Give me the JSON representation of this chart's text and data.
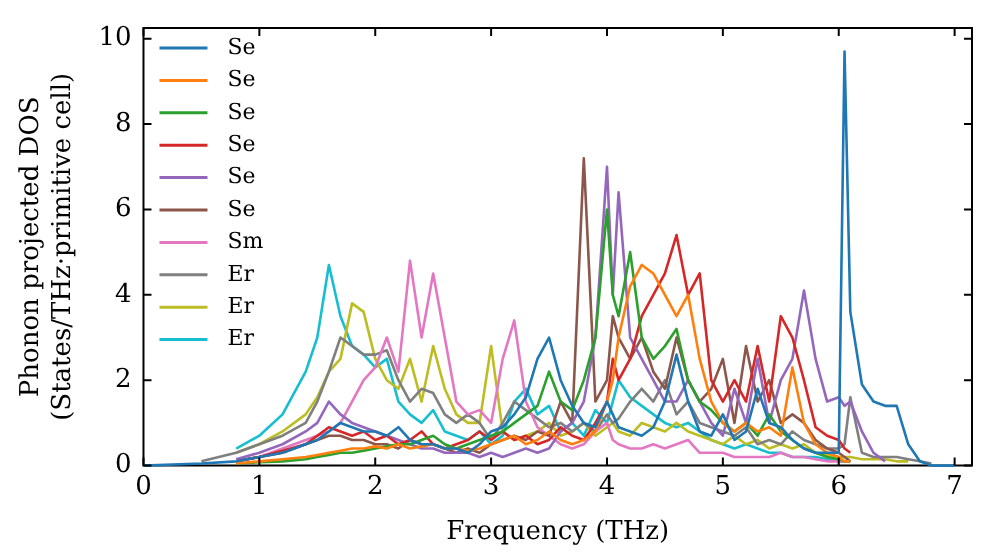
{
  "chart_data": {
    "type": "line",
    "xlabel": "Frequency (THz)",
    "ylabel": "Phonon projected DOS\n(States/THz·primitive cell)",
    "x": [
      0,
      0.5,
      0.8,
      1.0,
      1.2,
      1.4,
      1.5,
      1.6,
      1.7,
      1.8,
      1.9,
      2.0,
      2.1,
      2.2,
      2.3,
      2.4,
      2.5,
      2.6,
      2.7,
      2.8,
      2.9,
      3.0,
      3.1,
      3.2,
      3.3,
      3.4,
      3.5,
      3.6,
      3.7,
      3.8,
      3.9,
      4.0,
      4.05,
      4.1,
      4.2,
      4.3,
      4.4,
      4.5,
      4.6,
      4.7,
      4.8,
      4.9,
      5.0,
      5.1,
      5.2,
      5.3,
      5.4,
      5.5,
      5.6,
      5.7,
      5.8,
      5.9,
      6.0,
      6.05,
      6.1,
      6.2,
      6.3,
      6.4,
      6.5,
      6.6,
      6.7,
      6.8,
      7.0
    ],
    "xlim": [
      0,
      7.15
    ],
    "xticks": [
      0,
      1,
      2,
      3,
      4,
      5,
      6,
      7
    ],
    "ylim": [
      0,
      10.25
    ],
    "yticks": [
      0,
      2,
      4,
      6,
      8,
      10
    ],
    "legend": "top left",
    "grid": false,
    "marker": "none",
    "line_style": "solid",
    "series": [
      {
        "name": "Se",
        "color": "#1f77b4",
        "values": [
          0,
          0.05,
          0.1,
          0.2,
          0.3,
          0.5,
          0.6,
          0.8,
          1.0,
          0.9,
          0.8,
          0.8,
          0.7,
          0.9,
          0.6,
          0.5,
          0.5,
          0.4,
          0.4,
          0.3,
          0.5,
          0.8,
          0.9,
          1.2,
          1.6,
          2.5,
          3.0,
          2.0,
          1.4,
          1.0,
          0.9,
          1.5,
          1.2,
          0.9,
          0.8,
          0.7,
          0.9,
          1.5,
          2.6,
          1.5,
          0.8,
          0.7,
          1.2,
          0.6,
          0.8,
          1.8,
          1.0,
          0.9,
          0.6,
          0.4,
          0.3,
          0.3,
          0.3,
          9.7,
          3.6,
          1.9,
          1.5,
          1.4,
          1.4,
          0.5,
          0.1,
          0,
          0
        ]
      },
      {
        "name": "Se",
        "color": "#ff7f0e",
        "values": [
          null,
          null,
          0.05,
          0.1,
          0.15,
          0.2,
          0.25,
          0.3,
          0.35,
          0.4,
          0.4,
          0.45,
          0.4,
          0.5,
          0.4,
          0.45,
          0.5,
          0.4,
          0.4,
          0.35,
          0.4,
          0.5,
          0.6,
          0.7,
          0.5,
          0.6,
          0.8,
          0.6,
          0.5,
          0.6,
          0.8,
          1.5,
          2.0,
          3.0,
          4.2,
          4.7,
          4.5,
          4.0,
          3.5,
          4.0,
          2.5,
          1.5,
          1.0,
          0.8,
          1.0,
          0.8,
          0.9,
          0.7,
          2.3,
          1.0,
          0.5,
          0.3,
          0.2,
          0.1,
          0.1,
          null,
          null,
          null,
          null,
          null,
          null,
          null,
          null
        ]
      },
      {
        "name": "Se",
        "color": "#2ca02c",
        "values": [
          null,
          null,
          0.05,
          0.08,
          0.1,
          0.15,
          0.2,
          0.25,
          0.3,
          0.3,
          0.35,
          0.4,
          0.45,
          0.5,
          0.5,
          0.6,
          0.7,
          0.5,
          0.4,
          0.5,
          0.6,
          0.7,
          0.8,
          1.0,
          1.2,
          1.4,
          2.2,
          1.5,
          1.3,
          2.0,
          3.0,
          6.0,
          4.0,
          3.5,
          5.0,
          3.0,
          2.5,
          2.8,
          3.2,
          2.0,
          1.5,
          1.3,
          1.0,
          0.8,
          1.0,
          0.7,
          1.2,
          0.8,
          0.6,
          0.4,
          0.3,
          0.2,
          0.15,
          0.1,
          0.1,
          null,
          null,
          null,
          null,
          null,
          null,
          null,
          null
        ]
      },
      {
        "name": "Se",
        "color": "#d62728",
        "values": [
          null,
          null,
          0.1,
          0.2,
          0.35,
          0.5,
          0.7,
          0.9,
          0.8,
          0.7,
          0.8,
          0.6,
          0.7,
          0.5,
          0.6,
          0.8,
          0.5,
          0.4,
          0.5,
          0.6,
          0.8,
          0.6,
          0.8,
          0.6,
          0.7,
          0.5,
          0.6,
          0.9,
          0.7,
          0.6,
          1.0,
          1.5,
          2.5,
          2.0,
          2.5,
          3.5,
          4.0,
          4.5,
          5.4,
          4.0,
          4.5,
          2.0,
          1.5,
          2.0,
          1.5,
          2.8,
          1.5,
          3.5,
          3.0,
          2.0,
          0.9,
          0.7,
          0.6,
          0.4,
          0.3,
          null,
          null,
          null,
          null,
          null,
          null,
          null,
          null
        ]
      },
      {
        "name": "Se",
        "color": "#9467bd",
        "values": [
          null,
          null,
          0.15,
          0.3,
          0.5,
          0.8,
          1.0,
          1.5,
          1.2,
          1.0,
          0.9,
          0.8,
          0.7,
          0.6,
          0.5,
          0.4,
          0.4,
          0.3,
          0.3,
          0.3,
          0.2,
          0.3,
          0.2,
          0.3,
          0.4,
          0.3,
          0.4,
          0.8,
          1.0,
          1.5,
          3.0,
          7.0,
          4.0,
          6.4,
          3.0,
          2.5,
          2.0,
          1.5,
          1.5,
          2.0,
          1.5,
          1.0,
          0.7,
          1.8,
          1.0,
          2.5,
          1.0,
          2.0,
          2.5,
          4.1,
          2.5,
          1.5,
          1.6,
          1.4,
          1.5,
          0.8,
          0.3,
          0.1,
          null,
          null,
          null,
          null,
          null
        ]
      },
      {
        "name": "Se",
        "color": "#8c564b",
        "values": [
          null,
          null,
          0.1,
          0.2,
          0.3,
          0.5,
          0.6,
          0.7,
          0.7,
          0.6,
          0.6,
          0.5,
          0.5,
          0.4,
          0.6,
          0.5,
          0.5,
          0.4,
          0.3,
          0.4,
          0.3,
          0.5,
          0.6,
          0.7,
          0.6,
          0.8,
          0.7,
          1.5,
          1.0,
          7.2,
          1.5,
          2.0,
          3.5,
          3.0,
          2.5,
          3.0,
          2.2,
          1.8,
          3.0,
          2.0,
          1.5,
          1.8,
          2.5,
          1.0,
          2.8,
          1.5,
          2.0,
          1.0,
          1.2,
          1.0,
          0.6,
          0.4,
          0.3,
          0.2,
          0.1,
          null,
          null,
          null,
          null,
          null,
          null,
          null,
          null
        ]
      },
      {
        "name": "Sm",
        "color": "#e377c2",
        "values": [
          null,
          null,
          0.1,
          0.2,
          0.4,
          0.6,
          0.7,
          0.8,
          1.0,
          1.5,
          2.0,
          2.3,
          3.0,
          2.2,
          4.8,
          3.0,
          4.5,
          3.0,
          1.5,
          1.2,
          1.3,
          1.0,
          2.5,
          3.4,
          1.5,
          0.9,
          0.7,
          0.5,
          0.4,
          0.5,
          0.8,
          1.0,
          0.6,
          0.5,
          0.4,
          0.4,
          0.5,
          0.4,
          0.5,
          0.6,
          0.3,
          0.3,
          0.3,
          0.2,
          0.2,
          0.2,
          0.2,
          0.3,
          0.2,
          0.2,
          0.15,
          0.1,
          0.1,
          0.1,
          null,
          null,
          null,
          null,
          null,
          null,
          null,
          null,
          null
        ]
      },
      {
        "name": "Er",
        "color": "#7f7f7f",
        "values": [
          null,
          0.1,
          0.3,
          0.5,
          0.7,
          1.0,
          1.5,
          2.2,
          3.0,
          2.8,
          2.6,
          2.6,
          2.7,
          2.0,
          1.5,
          1.8,
          1.7,
          1.2,
          1.0,
          1.2,
          1.0,
          0.6,
          1.0,
          1.5,
          1.3,
          1.1,
          0.9,
          1.0,
          0.8,
          1.0,
          0.8,
          1.2,
          1.0,
          1.1,
          1.5,
          1.8,
          1.5,
          2.0,
          1.2,
          1.5,
          1.0,
          0.9,
          0.8,
          0.7,
          0.9,
          0.5,
          0.6,
          0.5,
          0.8,
          0.6,
          0.5,
          0.4,
          0.4,
          0.5,
          1.6,
          0.3,
          0.2,
          0.2,
          0.2,
          0.15,
          0.1,
          0.05,
          null
        ]
      },
      {
        "name": "Er",
        "color": "#bcbd22",
        "values": [
          null,
          null,
          0.3,
          0.5,
          0.8,
          1.2,
          1.6,
          2.2,
          2.5,
          3.8,
          3.6,
          2.5,
          2.0,
          1.8,
          2.5,
          1.5,
          2.8,
          1.8,
          1.2,
          1.0,
          1.0,
          2.8,
          0.8,
          0.6,
          0.7,
          0.8,
          1.0,
          0.7,
          0.8,
          1.0,
          0.7,
          0.9,
          1.0,
          0.8,
          0.7,
          1.0,
          0.9,
          0.8,
          1.0,
          0.8,
          0.7,
          0.6,
          0.5,
          0.7,
          0.5,
          0.6,
          0.4,
          0.5,
          0.4,
          0.5,
          0.3,
          0.25,
          0.2,
          0.2,
          0.2,
          0.15,
          0.15,
          0.15,
          0.1,
          0.1,
          null,
          null,
          null
        ]
      },
      {
        "name": "Er",
        "color": "#17becf",
        "values": [
          null,
          null,
          0.4,
          0.7,
          1.2,
          2.2,
          3.0,
          4.7,
          3.5,
          2.8,
          2.6,
          2.3,
          2.5,
          1.5,
          1.2,
          1.0,
          1.3,
          0.8,
          0.7,
          0.6,
          0.8,
          0.5,
          0.7,
          1.5,
          1.8,
          1.2,
          1.4,
          0.8,
          1.0,
          0.7,
          1.3,
          1.0,
          1.5,
          2.0,
          1.6,
          1.4,
          1.2,
          1.0,
          0.9,
          1.0,
          0.8,
          0.6,
          0.5,
          0.4,
          0.5,
          0.4,
          0.3,
          0.3,
          0.2,
          0.2,
          0.2,
          0.15,
          0.1,
          0.1,
          0.1,
          null,
          null,
          null,
          null,
          null,
          null,
          null,
          null
        ]
      }
    ]
  }
}
